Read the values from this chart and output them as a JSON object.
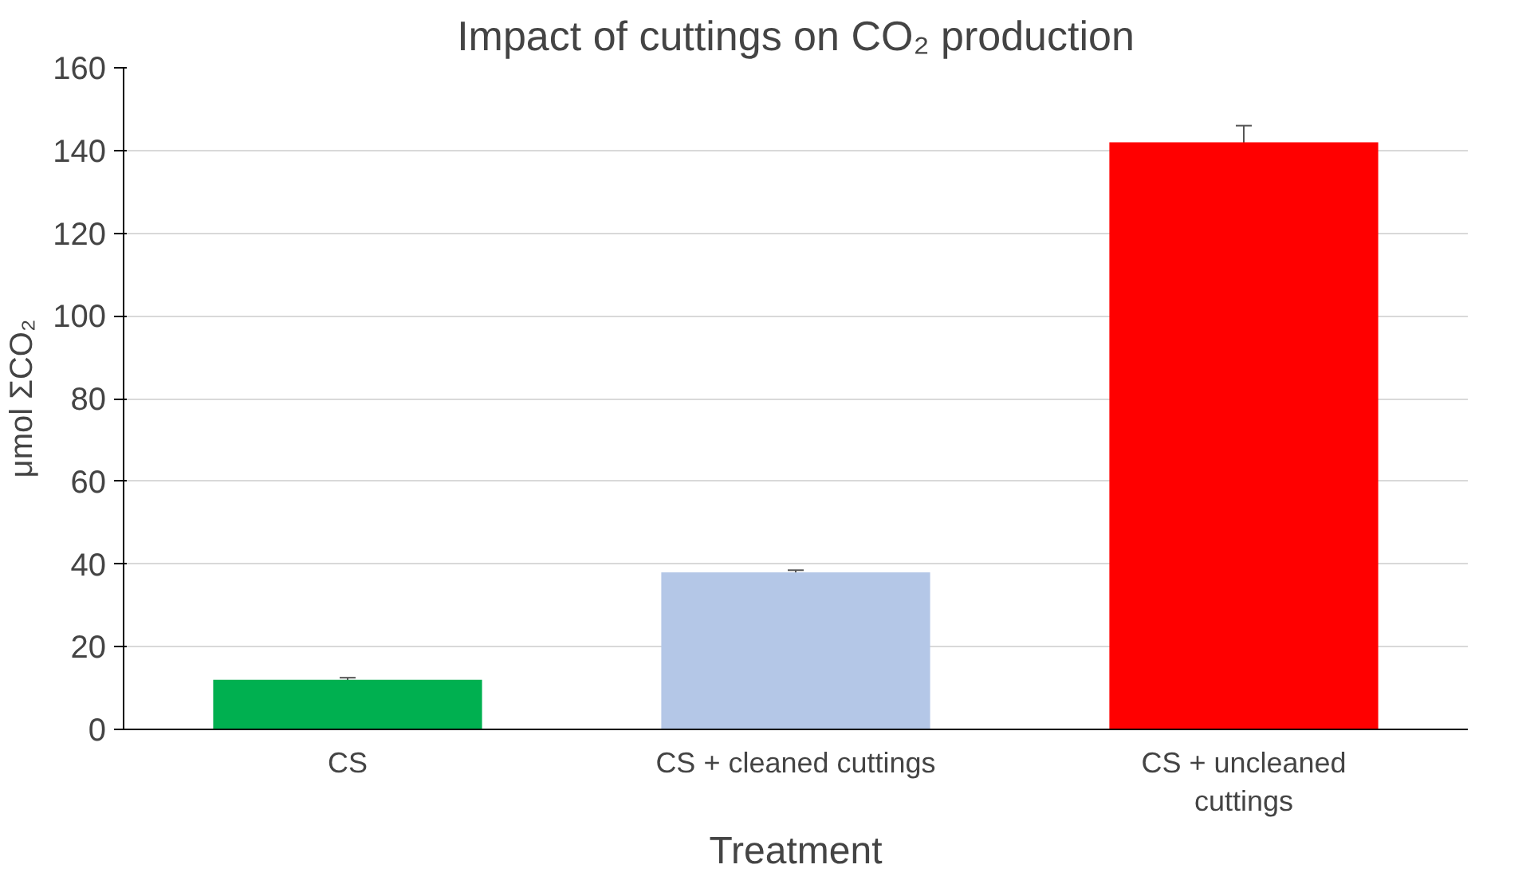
{
  "chart_data": {
    "type": "bar",
    "title": "Impact of cuttings on CO₂ production",
    "xlabel": "Treatment",
    "ylabel": "μmol ΣCO₂",
    "categories": [
      "CS",
      "CS + cleaned cuttings",
      "CS + uncleaned cuttings"
    ],
    "values": [
      12,
      38,
      142
    ],
    "colors": [
      "#00b050",
      "#b4c7e7",
      "#ff0000"
    ],
    "errors": [
      0.5,
      0.5,
      4
    ],
    "ylim": [
      0,
      160
    ],
    "yticks": [
      0,
      20,
      40,
      60,
      80,
      100,
      120,
      140,
      160
    ],
    "grid": "y"
  }
}
